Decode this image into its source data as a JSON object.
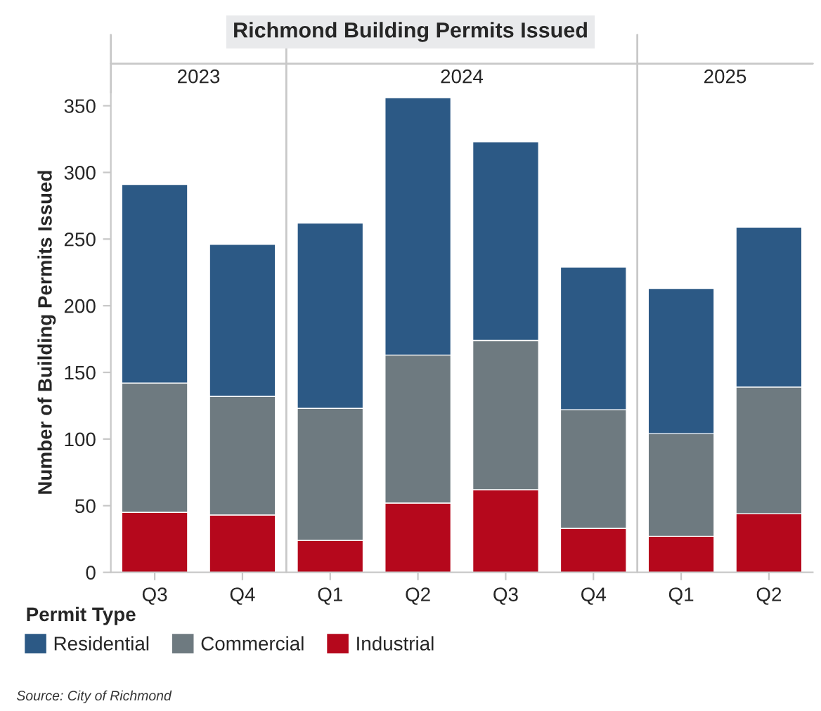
{
  "chart_data": {
    "type": "bar",
    "title": "Richmond Building Permits Issued",
    "ylabel": "Number of Building Permits Issued",
    "legend_title": "Permit Type",
    "categories": [
      "Q3",
      "Q4",
      "Q1",
      "Q2",
      "Q3",
      "Q4",
      "Q1",
      "Q2"
    ],
    "stacked": true,
    "legend": "bottom",
    "grid": false,
    "ylim": [
      0,
      360
    ],
    "yticks": [
      0,
      50,
      100,
      150,
      200,
      250,
      300,
      350
    ],
    "series": [
      {
        "name": "Industrial",
        "color": "#b5081c",
        "values": [
          45,
          43,
          24,
          52,
          62,
          33,
          27,
          44
        ]
      },
      {
        "name": "Commercial",
        "color": "#6e7a80",
        "values": [
          97,
          89,
          99,
          111,
          112,
          89,
          77,
          95
        ]
      },
      {
        "name": "Residential",
        "color": "#2c5985",
        "values": [
          149,
          114,
          139,
          193,
          149,
          107,
          109,
          120
        ]
      }
    ],
    "annotations": [
      "2023",
      "2024",
      "2025",
      "Source: City of Richmond"
    ]
  }
}
